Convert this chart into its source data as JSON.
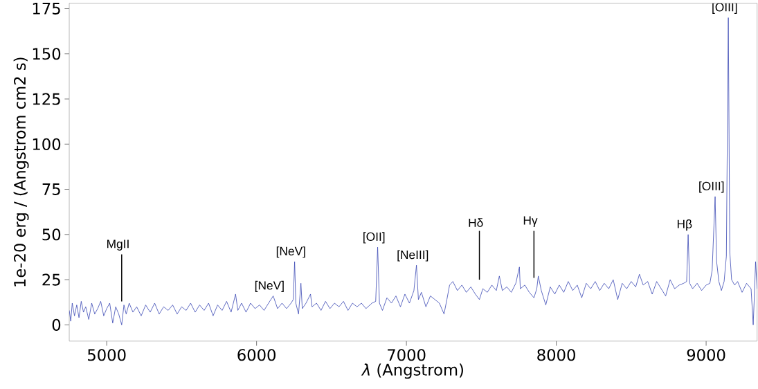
{
  "chart_data": {
    "type": "line",
    "xlabel": "*λ* (Angstrom)",
    "ylabel": "1e-20 erg / (Angstrom cm2 s)",
    "xlim": [
      4750,
      9340
    ],
    "ylim": [
      -9,
      178
    ],
    "xticks": [
      5000,
      6000,
      7000,
      8000,
      9000
    ],
    "yticks": [
      0,
      25,
      50,
      75,
      100,
      125,
      150,
      175
    ],
    "series": [
      {
        "color": "#3a48b4",
        "x": [
          4750,
          4760,
          4770,
          4785,
          4800,
          4815,
          4830,
          4845,
          4860,
          4880,
          4900,
          4920,
          4940,
          4960,
          4980,
          5000,
          5020,
          5040,
          5060,
          5080,
          5100,
          5115,
          5130,
          5150,
          5175,
          5200,
          5230,
          5260,
          5290,
          5320,
          5350,
          5380,
          5410,
          5440,
          5470,
          5500,
          5530,
          5560,
          5590,
          5620,
          5650,
          5680,
          5710,
          5740,
          5770,
          5800,
          5830,
          5860,
          5875,
          5900,
          5930,
          5960,
          5990,
          6020,
          6050,
          6080,
          6111,
          6140,
          6170,
          6200,
          6230,
          6245,
          6254,
          6262,
          6280,
          6296,
          6305,
          6330,
          6360,
          6370,
          6400,
          6430,
          6460,
          6490,
          6520,
          6550,
          6580,
          6610,
          6640,
          6670,
          6700,
          6730,
          6770,
          6795,
          6808,
          6820,
          6840,
          6870,
          6900,
          6930,
          6960,
          6990,
          7020,
          7050,
          7067,
          7080,
          7100,
          7130,
          7160,
          7190,
          7220,
          7251,
          7270,
          7288,
          7310,
          7340,
          7370,
          7400,
          7430,
          7460,
          7487,
          7510,
          7540,
          7570,
          7600,
          7620,
          7640,
          7670,
          7700,
          7730,
          7754,
          7760,
          7790,
          7820,
          7851,
          7870,
          7880,
          7900,
          7930,
          7960,
          7990,
          8020,
          8050,
          8080,
          8110,
          8140,
          8170,
          8200,
          8230,
          8260,
          8290,
          8320,
          8350,
          8380,
          8410,
          8440,
          8470,
          8500,
          8530,
          8555,
          8580,
          8610,
          8640,
          8670,
          8700,
          8730,
          8760,
          8790,
          8820,
          8850,
          8870,
          8880,
          8890,
          8910,
          8940,
          8970,
          9000,
          9025,
          9040,
          9060,
          9070,
          9085,
          9102,
          9120,
          9135,
          9148,
          9158,
          9170,
          9190,
          9210,
          9240,
          9270,
          9300,
          9314,
          9320,
          9330,
          9340
        ],
        "values": [
          8,
          2,
          12,
          5,
          11,
          4,
          13,
          7,
          10,
          3,
          12,
          6,
          9,
          13,
          5,
          9,
          12,
          1,
          10,
          6,
          0,
          11,
          6,
          12,
          7,
          10,
          5,
          11,
          7,
          12,
          6,
          10,
          8,
          11,
          6,
          10,
          8,
          12,
          7,
          11,
          8,
          12,
          5,
          11,
          8,
          13,
          7,
          17,
          8,
          12,
          7,
          12,
          9,
          11,
          8,
          12,
          16,
          9,
          12,
          9,
          12,
          14,
          35,
          12,
          6,
          23,
          9,
          12,
          17,
          10,
          12,
          8,
          13,
          9,
          12,
          10,
          13,
          8,
          12,
          10,
          12,
          9,
          12,
          13,
          43,
          12,
          8,
          15,
          12,
          16,
          10,
          17,
          12,
          19,
          33,
          14,
          18,
          10,
          16,
          14,
          12,
          6,
          14,
          22,
          24,
          19,
          22,
          18,
          21,
          17,
          14,
          20,
          18,
          22,
          19,
          27,
          19,
          21,
          18,
          23,
          32,
          20,
          22,
          18,
          15,
          20,
          27,
          19,
          11,
          21,
          17,
          22,
          18,
          24,
          19,
          22,
          15,
          23,
          20,
          24,
          19,
          23,
          20,
          25,
          14,
          23,
          20,
          24,
          21,
          28,
          22,
          24,
          17,
          24,
          20,
          16,
          25,
          20,
          22,
          23,
          24,
          50,
          23,
          20,
          23,
          19,
          22,
          23,
          30,
          71,
          35,
          24,
          19,
          24,
          38,
          170,
          40,
          25,
          22,
          24,
          18,
          23,
          20,
          0,
          12,
          35,
          20
        ]
      },
      {
        "color": "#000000",
        "x": [
          5100,
          5100
        ],
        "values": [
          13,
          39
        ]
      },
      {
        "color": "#000000",
        "x": [
          7487,
          7487
        ],
        "values": [
          25,
          52
        ]
      },
      {
        "color": "#000000",
        "x": [
          7851,
          7851
        ],
        "values": [
          26,
          52
        ]
      }
    ],
    "annotations": [
      {
        "text": "MgII",
        "x": 5100,
        "y": 39
      },
      {
        "text": "[NeV]",
        "x": 6111,
        "y": 16
      },
      {
        "text": "[NeV]",
        "x": 6254,
        "y": 35
      },
      {
        "text": "[OII]",
        "x": 6808,
        "y": 43
      },
      {
        "text": "[NeIII]",
        "x": 7067,
        "y": 33
      },
      {
        "text": "Hδ",
        "x": 7487,
        "y": 52
      },
      {
        "text": "Hγ",
        "x": 7851,
        "y": 52
      },
      {
        "text": "Hβ",
        "x": 8880,
        "y": 50
      },
      {
        "text": "[OIII]",
        "x": 9060,
        "y": 71
      },
      {
        "text": "[OIII]",
        "x": 9148,
        "y": 170
      }
    ]
  }
}
